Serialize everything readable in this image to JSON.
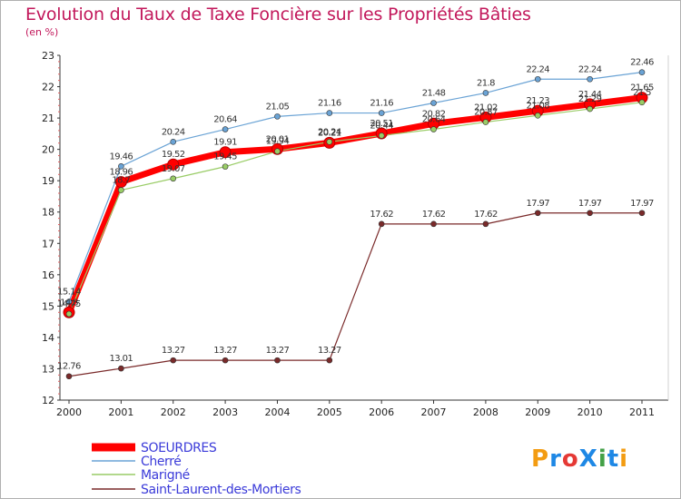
{
  "header": {
    "title": "Evolution du Taux de Taxe Foncière sur les Propriétés Bâties",
    "subtitle": "(en %)"
  },
  "brand": {
    "logo": "ProXiti",
    "colors": [
      "#f39c12",
      "#1e88e5",
      "#e53935",
      "#1e88e5",
      "#43a047",
      "#1e88e5",
      "#f39c12"
    ]
  },
  "chart_data": {
    "type": "line",
    "title": "Evolution du Taux de Taxe Foncière sur les Propriétés Bâties",
    "ylabel": "(en %)",
    "xlabel": "",
    "x": [
      2000,
      2001,
      2002,
      2003,
      2004,
      2005,
      2006,
      2007,
      2008,
      2009,
      2010,
      2011
    ],
    "ylim": [
      12,
      23
    ],
    "yticks": [
      12,
      13,
      14,
      15,
      16,
      17,
      18,
      19,
      20,
      21,
      22,
      23
    ],
    "grid": false,
    "legend": "bottom-left",
    "series": [
      {
        "name": "SOEURDRES",
        "color": "#ff0000",
        "values": [
          14.8,
          18.96,
          19.52,
          19.91,
          20.01,
          20.21,
          20.51,
          20.82,
          21.02,
          21.23,
          21.44,
          21.65
        ],
        "labels": [
          "14.8",
          "18.96",
          "19.52",
          "19.91",
          "20.01",
          "20.21",
          "20.51",
          "20.82",
          "21.02",
          "21.23",
          "21.44",
          "21.65"
        ]
      },
      {
        "name": "Cherré",
        "color": "#6aa3d5",
        "values": [
          15.14,
          19.46,
          20.24,
          20.64,
          21.05,
          21.16,
          21.16,
          21.48,
          21.8,
          22.24,
          22.24,
          22.46
        ],
        "labels": [
          "15.14",
          "19.46",
          "20.24",
          "20.64",
          "21.05",
          "21.16",
          "21.16",
          "21.48",
          "21.8",
          "22.24",
          "22.24",
          "22.46"
        ]
      },
      {
        "name": "Marigné",
        "color": "#99cc66",
        "values": [
          14.75,
          18.7,
          19.07,
          19.45,
          19.94,
          20.24,
          20.44,
          20.64,
          20.87,
          21.08,
          21.29,
          21.5
        ],
        "labels": [
          "14.75",
          "18.7",
          "19.07",
          "19.45",
          "19.94",
          "20.24",
          "20.44",
          "20.64",
          "20.87",
          "21.08",
          "21.29",
          "21.5"
        ]
      },
      {
        "name": "Saint-Laurent-des-Mortiers",
        "color": "#7a2a2a",
        "values": [
          12.76,
          13.01,
          13.27,
          13.27,
          13.27,
          13.27,
          17.62,
          17.62,
          17.62,
          17.97,
          17.97,
          17.97
        ],
        "labels": [
          "12.76",
          "13.01",
          "13.27",
          "13.27",
          "13.27",
          "13.27",
          "17.62",
          "17.62",
          "17.62",
          "17.97",
          "17.97",
          "17.97"
        ]
      }
    ]
  }
}
